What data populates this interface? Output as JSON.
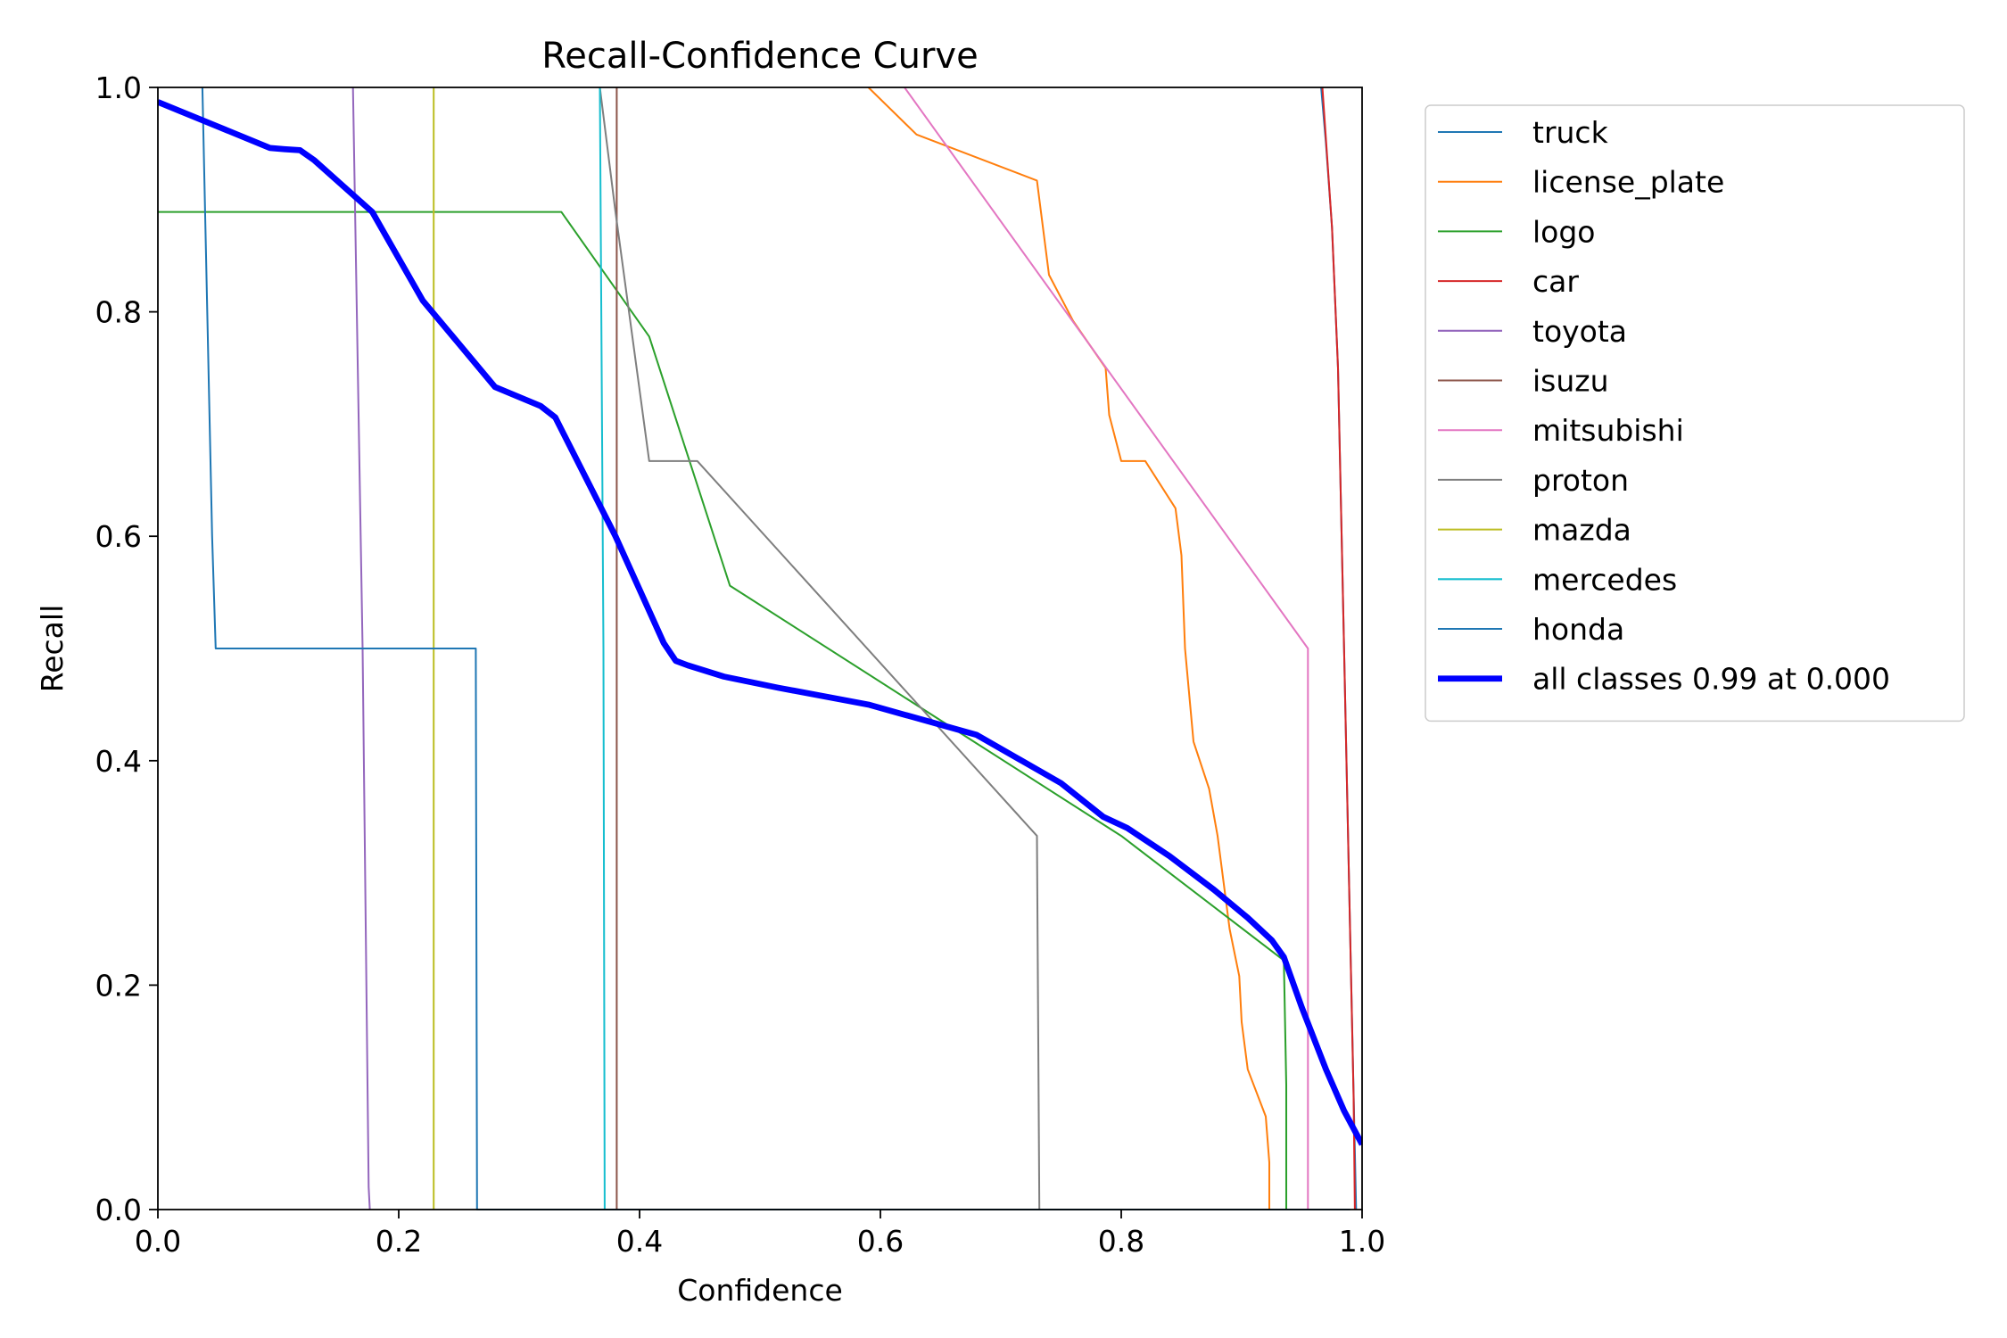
{
  "chart_data": {
    "type": "line",
    "title": "Recall-Confidence Curve",
    "xlabel": "Confidence",
    "ylabel": "Recall",
    "xlim": [
      0,
      1
    ],
    "ylim": [
      0,
      1
    ],
    "xticks": [
      "0.0",
      "0.2",
      "0.4",
      "0.6",
      "0.8",
      "1.0"
    ],
    "yticks": [
      "0.0",
      "0.2",
      "0.4",
      "0.6",
      "0.8",
      "1.0"
    ],
    "grid": false,
    "legend_position": "outside-right",
    "series": [
      {
        "name": "truck",
        "color": "#1f77b4",
        "width": 1.5,
        "x": [
          0.966,
          0.97,
          0.975,
          0.98,
          0.985,
          0.99,
          0.995
        ],
        "y": [
          1.0,
          0.95,
          0.875,
          0.75,
          0.5,
          0.25,
          0.0
        ]
      },
      {
        "name": "license_plate",
        "color": "#ff7f0e",
        "width": 1.5,
        "x": [
          0.59,
          0.63,
          0.73,
          0.74,
          0.76,
          0.787,
          0.79,
          0.8,
          0.82,
          0.845,
          0.85,
          0.853,
          0.86,
          0.873,
          0.88,
          0.89,
          0.898,
          0.9,
          0.905,
          0.92,
          0.923,
          0.923
        ],
        "y": [
          1.0,
          0.958,
          0.917,
          0.833,
          0.792,
          0.75,
          0.708,
          0.667,
          0.667,
          0.625,
          0.583,
          0.5,
          0.417,
          0.375,
          0.333,
          0.25,
          0.208,
          0.167,
          0.125,
          0.083,
          0.042,
          0.0
        ]
      },
      {
        "name": "logo",
        "color": "#2ca02c",
        "width": 1.5,
        "x": [
          0.0,
          0.335,
          0.408,
          0.475,
          0.8,
          0.935,
          0.937,
          0.937
        ],
        "y": [
          0.889,
          0.889,
          0.778,
          0.556,
          0.333,
          0.222,
          0.111,
          0.0
        ]
      },
      {
        "name": "car",
        "color": "#d62728",
        "width": 1.5,
        "x": [
          0.967,
          0.975,
          0.98,
          0.985,
          0.99,
          0.993,
          0.994
        ],
        "y": [
          1.0,
          0.875,
          0.75,
          0.5,
          0.25,
          0.1,
          0.0
        ]
      },
      {
        "name": "toyota",
        "color": "#9467bd",
        "width": 1.5,
        "x": [
          0.162,
          0.17,
          0.175,
          0.176
        ],
        "y": [
          1.0,
          0.5,
          0.02,
          0.0
        ]
      },
      {
        "name": "isuzu",
        "color": "#8c564b",
        "width": 1.5,
        "x": [
          0.381,
          0.381
        ],
        "y": [
          1.0,
          0.0
        ]
      },
      {
        "name": "mitsubishi",
        "color": "#e377c2",
        "width": 1.5,
        "x": [
          0.62,
          0.955,
          0.955
        ],
        "y": [
          1.0,
          0.5,
          0.0
        ]
      },
      {
        "name": "proton",
        "color": "#7f7f7f",
        "width": 1.5,
        "x": [
          0.367,
          0.38,
          0.408,
          0.43,
          0.448,
          0.73,
          0.732
        ],
        "y": [
          1.0,
          0.889,
          0.667,
          0.667,
          0.667,
          0.333,
          0.0
        ]
      },
      {
        "name": "mazda",
        "color": "#bcbd22",
        "width": 1.5,
        "x": [
          0.229,
          0.229
        ],
        "y": [
          1.0,
          0.0
        ]
      },
      {
        "name": "mercedes",
        "color": "#17becf",
        "width": 1.5,
        "x": [
          0.367,
          0.37,
          0.371,
          0.4,
          0.6,
          0.8,
          0.99
        ],
        "y": [
          1.0,
          0.5,
          0.0,
          0.0,
          0.0,
          0.0,
          0.0
        ]
      },
      {
        "name": "honda",
        "color": "#1f77b4",
        "width": 1.5,
        "x": [
          0.037,
          0.045,
          0.048,
          0.264,
          0.265,
          0.5,
          0.8,
          0.99
        ],
        "y": [
          1.0,
          0.6,
          0.5,
          0.5,
          0.0,
          0.0,
          0.0,
          0.0
        ]
      },
      {
        "name": "all classes 0.99 at 0.000",
        "color": "#0000ff",
        "width": 5,
        "x": [
          0.0,
          0.05,
          0.093,
          0.105,
          0.118,
          0.13,
          0.178,
          0.22,
          0.28,
          0.318,
          0.33,
          0.38,
          0.42,
          0.43,
          0.44,
          0.47,
          0.515,
          0.59,
          0.68,
          0.75,
          0.785,
          0.805,
          0.84,
          0.877,
          0.905,
          0.925,
          0.935,
          0.95,
          0.97,
          0.985,
          1.0
        ],
        "y": [
          0.987,
          0.965,
          0.946,
          0.945,
          0.944,
          0.935,
          0.889,
          0.81,
          0.733,
          0.716,
          0.706,
          0.6,
          0.505,
          0.489,
          0.485,
          0.475,
          0.465,
          0.45,
          0.423,
          0.38,
          0.35,
          0.34,
          0.315,
          0.285,
          0.26,
          0.24,
          0.225,
          0.18,
          0.125,
          0.088,
          0.058
        ]
      }
    ]
  }
}
